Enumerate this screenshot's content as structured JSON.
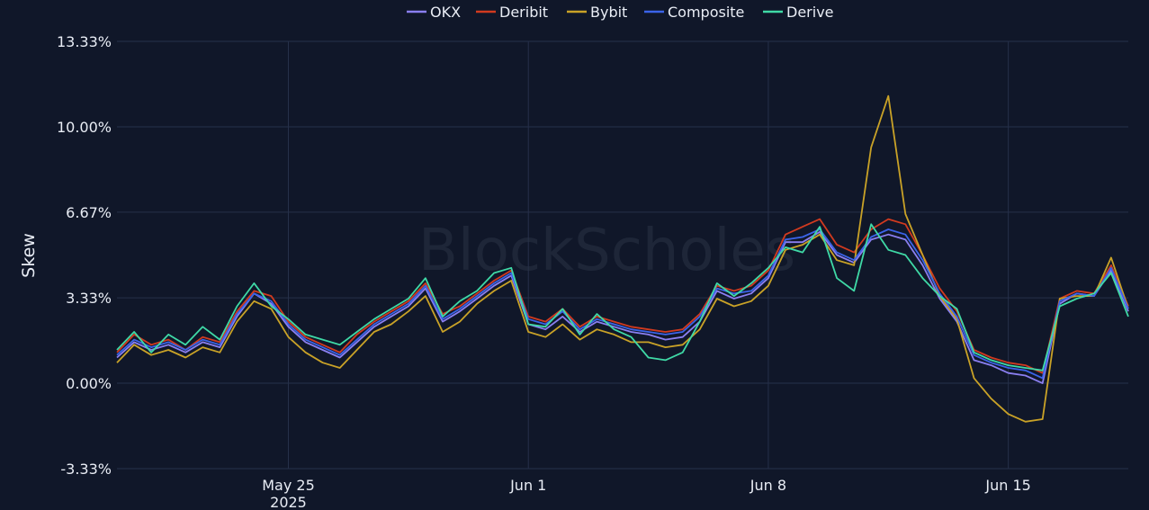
{
  "chart_data": {
    "type": "line",
    "xlabel": "",
    "ylabel": "Skew",
    "ylim": [
      -3.33,
      13.33
    ],
    "xlim": [
      "2025-05-20T00:00",
      "2025-06-18T12:00"
    ],
    "grid": true,
    "legend_position": "top-center",
    "watermark": "BlockScholes",
    "y_ticks": [
      {
        "value": 13.33,
        "label": "13.33%"
      },
      {
        "value": 10.0,
        "label": "10.00%"
      },
      {
        "value": 6.67,
        "label": "6.67%"
      },
      {
        "value": 3.33,
        "label": "3.33%"
      },
      {
        "value": 0.0,
        "label": "0.00%"
      },
      {
        "value": -3.33,
        "label": "-3.33%"
      }
    ],
    "x_ticks": [
      {
        "date": "2025-05-25",
        "label": "May 25",
        "sublabel": "2025"
      },
      {
        "date": "2025-06-01",
        "label": "Jun 1",
        "sublabel": ""
      },
      {
        "date": "2025-06-08",
        "label": "Jun 8",
        "sublabel": ""
      },
      {
        "date": "2025-06-15",
        "label": "Jun 15",
        "sublabel": ""
      }
    ],
    "x": [
      "2025-05-20T00:00",
      "2025-05-20T12:00",
      "2025-05-21T00:00",
      "2025-05-21T12:00",
      "2025-05-22T00:00",
      "2025-05-22T12:00",
      "2025-05-23T00:00",
      "2025-05-23T12:00",
      "2025-05-24T00:00",
      "2025-05-24T12:00",
      "2025-05-25T00:00",
      "2025-05-25T12:00",
      "2025-05-26T00:00",
      "2025-05-26T12:00",
      "2025-05-27T00:00",
      "2025-05-27T12:00",
      "2025-05-28T00:00",
      "2025-05-28T12:00",
      "2025-05-29T00:00",
      "2025-05-29T12:00",
      "2025-05-30T00:00",
      "2025-05-30T12:00",
      "2025-05-31T00:00",
      "2025-05-31T12:00",
      "2025-06-01T00:00",
      "2025-06-01T12:00",
      "2025-06-02T00:00",
      "2025-06-02T12:00",
      "2025-06-03T00:00",
      "2025-06-03T12:00",
      "2025-06-04T00:00",
      "2025-06-04T12:00",
      "2025-06-05T00:00",
      "2025-06-05T12:00",
      "2025-06-06T00:00",
      "2025-06-06T12:00",
      "2025-06-07T00:00",
      "2025-06-07T12:00",
      "2025-06-08T00:00",
      "2025-06-08T12:00",
      "2025-06-09T00:00",
      "2025-06-09T12:00",
      "2025-06-10T00:00",
      "2025-06-10T12:00",
      "2025-06-11T00:00",
      "2025-06-11T12:00",
      "2025-06-12T00:00",
      "2025-06-12T12:00",
      "2025-06-13T00:00",
      "2025-06-13T12:00",
      "2025-06-14T00:00",
      "2025-06-14T12:00",
      "2025-06-15T00:00",
      "2025-06-15T12:00",
      "2025-06-16T00:00",
      "2025-06-16T12:00",
      "2025-06-17T00:00",
      "2025-06-17T12:00",
      "2025-06-18T00:00",
      "2025-06-18T12:00"
    ],
    "series": [
      {
        "name": "OKX",
        "color": "#8a7ff0",
        "values": [
          1.0,
          1.6,
          1.3,
          1.5,
          1.2,
          1.6,
          1.4,
          2.6,
          3.5,
          3.1,
          2.2,
          1.6,
          1.3,
          1.0,
          1.6,
          2.2,
          2.6,
          3.0,
          3.7,
          2.4,
          2.8,
          3.3,
          3.8,
          4.2,
          2.3,
          2.1,
          2.6,
          2.0,
          2.4,
          2.2,
          2.0,
          1.9,
          1.7,
          1.8,
          2.4,
          3.6,
          3.3,
          3.5,
          4.1,
          5.5,
          5.5,
          5.9,
          5.0,
          4.7,
          5.6,
          5.8,
          5.6,
          4.6,
          3.3,
          2.4,
          0.9,
          0.7,
          0.4,
          0.3,
          0.0,
          3.1,
          3.5,
          3.4,
          4.4,
          2.8
        ]
      },
      {
        "name": "Deribit",
        "color": "#d13a1f",
        "values": [
          1.2,
          1.9,
          1.5,
          1.7,
          1.3,
          1.8,
          1.6,
          2.8,
          3.6,
          3.4,
          2.4,
          1.8,
          1.5,
          1.2,
          1.9,
          2.4,
          2.8,
          3.2,
          3.9,
          2.7,
          3.0,
          3.5,
          4.0,
          4.4,
          2.6,
          2.4,
          2.9,
          2.2,
          2.6,
          2.4,
          2.2,
          2.1,
          2.0,
          2.1,
          2.7,
          3.8,
          3.6,
          3.8,
          4.4,
          5.8,
          6.1,
          6.4,
          5.4,
          5.1,
          6.0,
          6.4,
          6.2,
          5.0,
          3.7,
          2.8,
          1.3,
          1.0,
          0.8,
          0.7,
          0.4,
          3.3,
          3.6,
          3.5,
          4.6,
          3.0
        ]
      },
      {
        "name": "Bybit",
        "color": "#c9a227",
        "values": [
          0.8,
          1.5,
          1.1,
          1.3,
          1.0,
          1.4,
          1.2,
          2.4,
          3.2,
          2.9,
          1.8,
          1.2,
          0.8,
          0.6,
          1.3,
          2.0,
          2.3,
          2.8,
          3.4,
          2.0,
          2.4,
          3.1,
          3.6,
          4.0,
          2.0,
          1.8,
          2.3,
          1.7,
          2.1,
          1.9,
          1.6,
          1.6,
          1.4,
          1.5,
          2.1,
          3.3,
          3.0,
          3.2,
          3.8,
          5.2,
          5.4,
          5.8,
          4.8,
          4.6,
          9.2,
          11.2,
          6.6,
          5.0,
          3.4,
          2.5,
          0.2,
          -0.6,
          -1.2,
          -1.5,
          -1.4,
          3.3,
          3.4,
          3.4,
          4.9,
          2.9
        ]
      },
      {
        "name": "Composite",
        "color": "#3b63e8",
        "values": [
          1.1,
          1.7,
          1.4,
          1.6,
          1.3,
          1.7,
          1.5,
          2.7,
          3.5,
          3.2,
          2.3,
          1.7,
          1.4,
          1.1,
          1.7,
          2.3,
          2.7,
          3.1,
          3.8,
          2.5,
          2.9,
          3.4,
          3.9,
          4.3,
          2.5,
          2.3,
          2.8,
          2.1,
          2.5,
          2.3,
          2.1,
          2.0,
          1.9,
          2.0,
          2.6,
          3.7,
          3.5,
          3.6,
          4.2,
          5.6,
          5.7,
          6.0,
          5.1,
          4.8,
          5.7,
          6.0,
          5.8,
          4.8,
          3.5,
          2.6,
          1.1,
          0.8,
          0.6,
          0.5,
          0.2,
          3.2,
          3.5,
          3.4,
          4.5,
          2.9
        ]
      },
      {
        "name": "Derive",
        "color": "#3fd9a6",
        "values": [
          1.3,
          2.0,
          1.2,
          1.9,
          1.5,
          2.2,
          1.7,
          3.0,
          3.9,
          3.0,
          2.5,
          1.9,
          1.7,
          1.5,
          2.0,
          2.5,
          2.9,
          3.3,
          4.1,
          2.6,
          3.2,
          3.6,
          4.3,
          4.5,
          2.3,
          2.2,
          2.9,
          1.9,
          2.7,
          2.1,
          1.8,
          1.0,
          0.9,
          1.2,
          2.4,
          3.9,
          3.4,
          3.9,
          4.5,
          5.3,
          5.1,
          6.1,
          4.1,
          3.6,
          6.2,
          5.2,
          5.0,
          4.1,
          3.4,
          2.9,
          1.2,
          0.9,
          0.7,
          0.6,
          0.5,
          3.0,
          3.3,
          3.5,
          4.3,
          2.6
        ]
      }
    ]
  }
}
